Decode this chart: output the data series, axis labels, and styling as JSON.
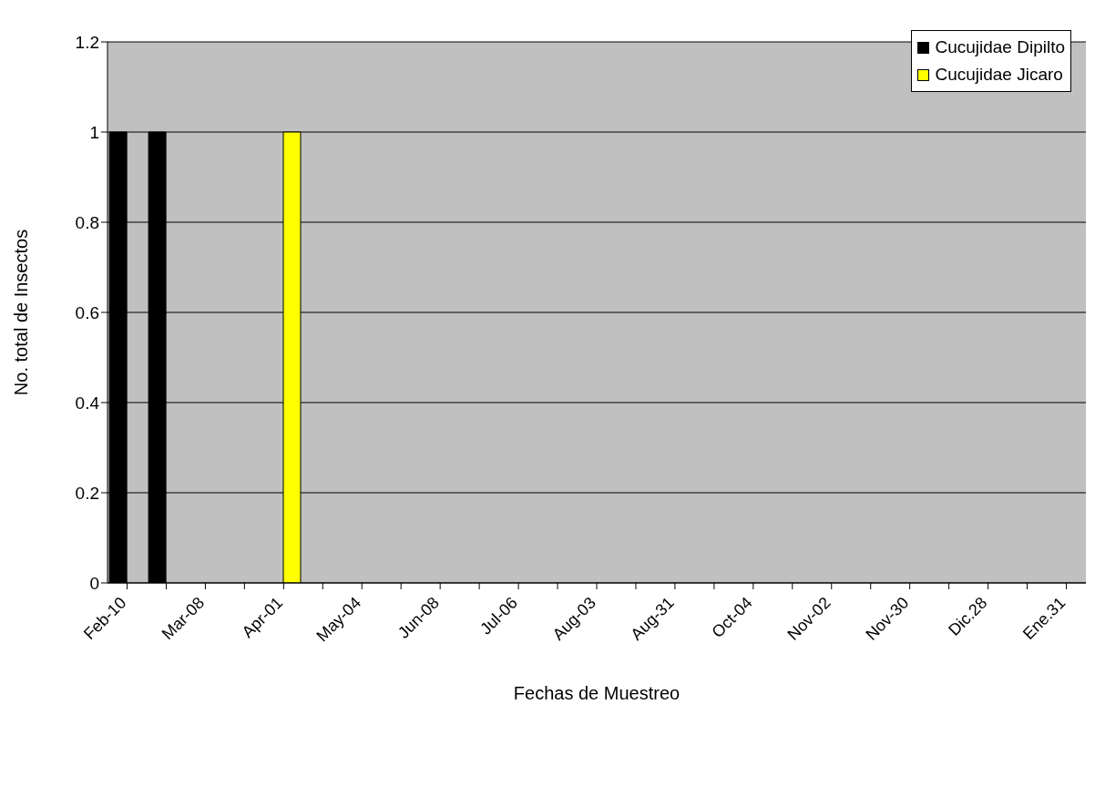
{
  "chart_data": {
    "type": "bar",
    "xlabel": "Fechas de Muestreo",
    "ylabel": "No. total de Insectos",
    "categories": [
      "Feb-10",
      null,
      "Mar-08",
      null,
      "Apr-01",
      null,
      "May-04",
      null,
      "Jun-08",
      null,
      "Jul-06",
      null,
      "Aug-03",
      null,
      "Aug-31",
      null,
      "Oct-04",
      null,
      "Nov-02",
      null,
      "Nov-30",
      null,
      "Dic.28",
      null,
      "Ene.31"
    ],
    "series": [
      {
        "name": "Cucujidae Dipilto",
        "color": "#000000",
        "values": [
          1,
          1,
          0,
          0,
          0,
          0,
          0,
          0,
          0,
          0,
          0,
          0,
          0,
          0,
          0,
          0,
          0,
          0,
          0,
          0,
          0,
          0,
          0,
          0,
          0
        ]
      },
      {
        "name": "Cucujidae Jicaro",
        "color": "#ffff00",
        "values": [
          0,
          0,
          0,
          0,
          1,
          0,
          0,
          0,
          0,
          0,
          0,
          0,
          0,
          0,
          0,
          0,
          0,
          0,
          0,
          0,
          0,
          0,
          0,
          0,
          0
        ]
      }
    ],
    "ylim": [
      0,
      1.2
    ],
    "yticks": [
      0,
      0.2,
      0.4,
      0.6,
      0.8,
      1,
      1.2
    ],
    "grid": "y",
    "legend": "top right"
  }
}
